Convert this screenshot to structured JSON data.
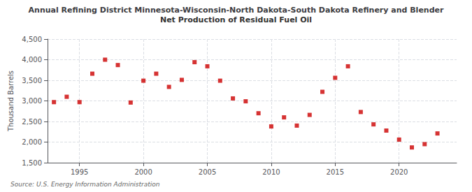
{
  "chart_data": {
    "type": "scatter",
    "title": "Annual Refining District Minnesota-Wisconsin-North Dakota-South Dakota Refinery and Blender",
    "subtitle": "Net Production of Residual Fuel Oil",
    "ylabel": "Thousand Barrels",
    "source": "Source: U.S. Energy Information Administration",
    "x": [
      1993,
      1994,
      1995,
      1996,
      1997,
      1998,
      1999,
      2000,
      2001,
      2002,
      2003,
      2004,
      2005,
      2006,
      2007,
      2008,
      2009,
      2010,
      2011,
      2012,
      2013,
      2014,
      2015,
      2016,
      2017,
      2018,
      2019,
      2020,
      2021,
      2022,
      2023
    ],
    "values": [
      2970,
      3100,
      2970,
      3660,
      4000,
      3870,
      2960,
      3490,
      3660,
      3340,
      3510,
      3940,
      3840,
      3490,
      3060,
      2990,
      2700,
      2380,
      2600,
      2400,
      2660,
      3220,
      3560,
      3840,
      2730,
      2430,
      2280,
      2060,
      1870,
      1950,
      2210
    ],
    "color": "#cc0000",
    "marker": "square",
    "xlim": [
      1992.5,
      2024.5
    ],
    "xticks": [
      1995,
      2000,
      2005,
      2010,
      2015,
      2020
    ],
    "ylim": [
      1500,
      4500
    ],
    "yticks": [
      {
        "value": 1500,
        "label": "1,500"
      },
      {
        "value": 2000,
        "label": "2,000"
      },
      {
        "value": 2500,
        "label": "2,500"
      },
      {
        "value": 3000,
        "label": "3,000"
      },
      {
        "value": 3500,
        "label": "3,500"
      },
      {
        "value": 4000,
        "label": "4,000"
      },
      {
        "value": 4500,
        "label": "4,500"
      }
    ],
    "grid": true
  }
}
